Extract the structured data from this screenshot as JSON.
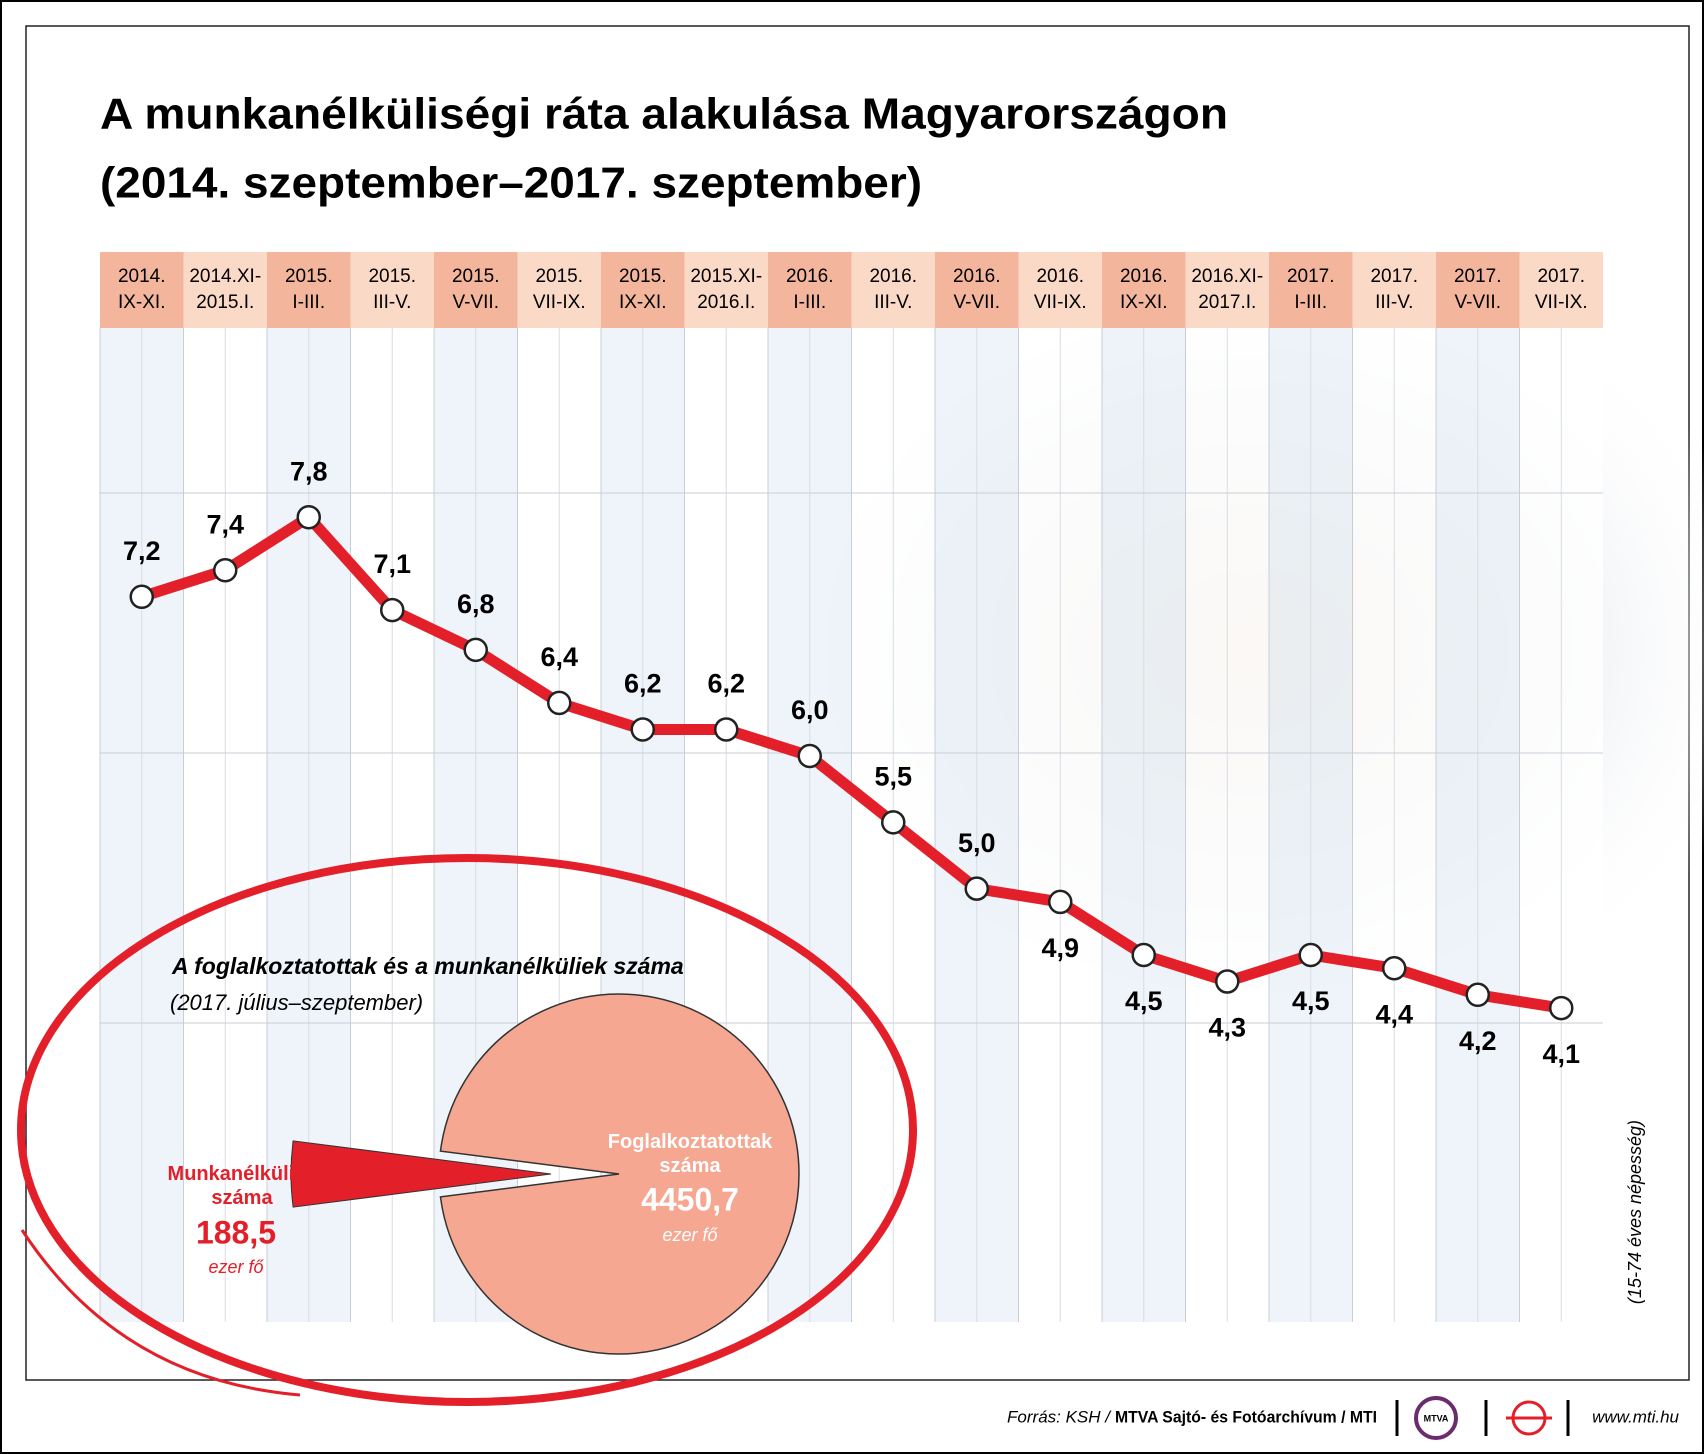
{
  "chart_data": [
    {
      "type": "line",
      "title": "A munkanélküliségi ráta alakulása Magyarországon",
      "subtitle": "(2014. szeptember–2017. szeptember)",
      "categories": [
        "2014.\nIX-XI.",
        "2014.XI-\n2015.I.",
        "2015.\nI-III.",
        "2015.\nIII-V.",
        "2015.\nV-VII.",
        "2015.\nVII-IX.",
        "2015.\nIX-XI.",
        "2015.XI-\n2016.I.",
        "2016.\nI-III.",
        "2016.\nIII-V.",
        "2016.\nV-VII.",
        "2016.\nVII-IX.",
        "2016.\nIX-XI.",
        "2016.XI-\n2017.I.",
        "2017.\nI-III.",
        "2017.\nIII-V.",
        "2017.\nV-VII.",
        "2017.\nVII-IX."
      ],
      "values": [
        7.2,
        7.4,
        7.8,
        7.1,
        6.8,
        6.4,
        6.2,
        6.2,
        6.0,
        5.5,
        5.0,
        4.9,
        4.5,
        4.3,
        4.5,
        4.4,
        4.2,
        4.1
      ],
      "value_labels": [
        "7,2",
        "7,4",
        "7,8",
        "7,1",
        "6,8",
        "6,4",
        "6,2",
        "6,2",
        "6,0",
        "5,5",
        "5,0",
        "4,9",
        "4,5",
        "4,3",
        "4,5",
        "4,4",
        "4,2",
        "4,1"
      ],
      "color": "#e3202a",
      "ylim": [
        3,
        9
      ],
      "side_note": "(15-74 éves népesség)"
    },
    {
      "type": "pie",
      "title": "A foglalkoztatottak és a munkanélküliek száma",
      "subtitle": "(2017. július–szeptember)",
      "categories": [
        "Foglalkoztatottak száma",
        "Munkanélküliek száma"
      ],
      "values": [
        4450.7,
        188.5
      ],
      "value_labels": [
        "4450,7",
        "188,5"
      ],
      "colors": [
        "#f5a792",
        "#e3202a"
      ],
      "unit": "ezer fő"
    }
  ],
  "footer": {
    "source_prefix": "Forrás: KSH /",
    "source": "MTVA Sajtó- és Fotóarchívum / MTI",
    "logo": "MTVA",
    "url": "www.mti.hu"
  }
}
